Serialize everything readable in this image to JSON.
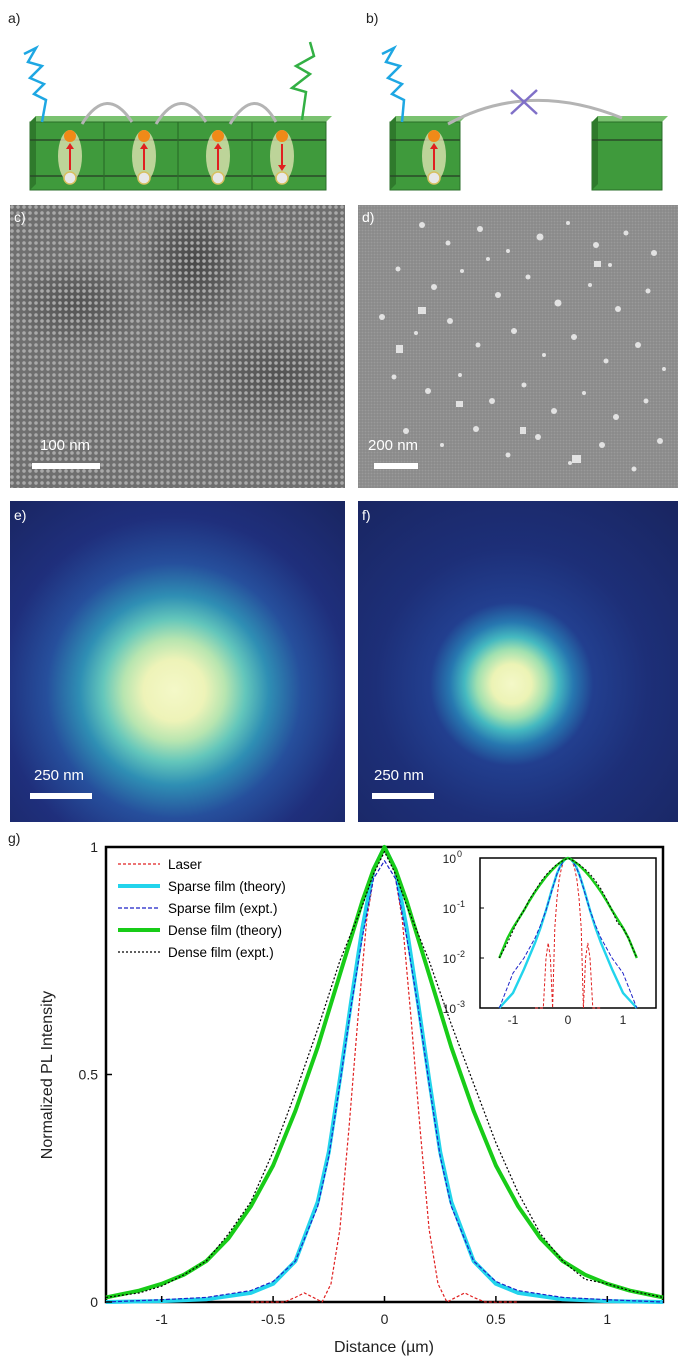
{
  "panels": {
    "a": "a)",
    "b": "b)",
    "c": "c)",
    "d": "d)",
    "e": "e)",
    "f": "f)",
    "g": "g)"
  },
  "scale_bars": {
    "c": "100 nm",
    "d": "200 nm",
    "e": "250 nm",
    "f": "250 nm"
  },
  "colors": {
    "laser": "#e02020",
    "sparse_theory": "#22d4ec",
    "sparse_expt": "#1c22c8",
    "dense_theory": "#18cc18",
    "dense_expt": "#000000",
    "cube_green": "#3f9a3c"
  },
  "chart_data": {
    "type": "line",
    "xlabel": "Distance (µm)",
    "ylabel": "Normalized PL Intensity",
    "xlim": [
      -1.25,
      1.25
    ],
    "ylim": [
      0,
      1
    ],
    "xticks": [
      -1,
      -0.5,
      0,
      0.5,
      1
    ],
    "xtick_labels": [
      "-1",
      "-0.5",
      "0",
      "0.5",
      "1"
    ],
    "yticks": [
      0,
      0.5,
      1
    ],
    "ytick_labels": [
      "0",
      "0.5",
      "1"
    ],
    "legend_position": "top-left",
    "series": [
      {
        "name": "Laser",
        "style": "dashed",
        "x": [
          -0.6,
          -0.45,
          -0.4,
          -0.36,
          -0.32,
          -0.28,
          -0.24,
          -0.2,
          -0.16,
          -0.12,
          -0.08,
          -0.04,
          0,
          0.04,
          0.08,
          0.12,
          0.16,
          0.2,
          0.24,
          0.28,
          0.32,
          0.36,
          0.4,
          0.45,
          0.6
        ],
        "y": [
          0,
          0,
          0.01,
          0.02,
          0.01,
          0.0,
          0.04,
          0.16,
          0.38,
          0.62,
          0.84,
          0.96,
          1.0,
          0.96,
          0.84,
          0.62,
          0.38,
          0.16,
          0.04,
          0.0,
          0.01,
          0.02,
          0.01,
          0,
          0
        ]
      },
      {
        "name": "Sparse film (theory)",
        "style": "solid",
        "x": [
          -1.25,
          -1.0,
          -0.8,
          -0.6,
          -0.5,
          -0.4,
          -0.3,
          -0.25,
          -0.2,
          -0.15,
          -0.1,
          -0.05,
          0,
          0.05,
          0.1,
          0.15,
          0.2,
          0.25,
          0.3,
          0.4,
          0.5,
          0.6,
          0.8,
          1.0,
          1.25
        ],
        "y": [
          0.0,
          0.002,
          0.006,
          0.02,
          0.04,
          0.09,
          0.22,
          0.33,
          0.49,
          0.66,
          0.82,
          0.95,
          1.0,
          0.95,
          0.82,
          0.66,
          0.49,
          0.33,
          0.22,
          0.09,
          0.04,
          0.02,
          0.006,
          0.002,
          0.0
        ]
      },
      {
        "name": "Sparse film (expt.)",
        "style": "dashed",
        "x": [
          -1.25,
          -1.0,
          -0.8,
          -0.6,
          -0.5,
          -0.4,
          -0.3,
          -0.25,
          -0.2,
          -0.15,
          -0.1,
          -0.05,
          0,
          0.05,
          0.1,
          0.15,
          0.2,
          0.25,
          0.3,
          0.4,
          0.5,
          0.6,
          0.8,
          1.0,
          1.25
        ],
        "y": [
          0.0,
          0.005,
          0.01,
          0.025,
          0.045,
          0.09,
          0.21,
          0.32,
          0.48,
          0.65,
          0.8,
          0.93,
          0.97,
          0.93,
          0.8,
          0.65,
          0.48,
          0.32,
          0.21,
          0.09,
          0.045,
          0.025,
          0.01,
          0.005,
          0.0
        ]
      },
      {
        "name": "Dense film (theory)",
        "style": "solid",
        "x": [
          -1.25,
          -1.1,
          -1.0,
          -0.9,
          -0.8,
          -0.7,
          -0.6,
          -0.5,
          -0.4,
          -0.3,
          -0.2,
          -0.1,
          -0.05,
          0,
          0.05,
          0.1,
          0.2,
          0.3,
          0.4,
          0.5,
          0.6,
          0.7,
          0.8,
          0.9,
          1.0,
          1.1,
          1.25
        ],
        "y": [
          0.01,
          0.025,
          0.04,
          0.06,
          0.09,
          0.14,
          0.21,
          0.3,
          0.42,
          0.56,
          0.72,
          0.88,
          0.95,
          1.0,
          0.95,
          0.88,
          0.72,
          0.56,
          0.42,
          0.3,
          0.21,
          0.14,
          0.09,
          0.06,
          0.04,
          0.025,
          0.01
        ]
      },
      {
        "name": "Dense film (expt.)",
        "style": "dotted",
        "x": [
          -1.25,
          -1.1,
          -1.0,
          -0.9,
          -0.8,
          -0.7,
          -0.6,
          -0.5,
          -0.4,
          -0.3,
          -0.2,
          -0.1,
          -0.05,
          0,
          0.05,
          0.1,
          0.2,
          0.3,
          0.4,
          0.5,
          0.6,
          0.7,
          0.8,
          0.9,
          1.0,
          1.1,
          1.25
        ],
        "y": [
          0.01,
          0.02,
          0.035,
          0.06,
          0.09,
          0.15,
          0.22,
          0.33,
          0.46,
          0.6,
          0.75,
          0.87,
          0.94,
          0.99,
          0.94,
          0.87,
          0.75,
          0.61,
          0.48,
          0.35,
          0.24,
          0.15,
          0.09,
          0.05,
          0.04,
          0.025,
          0.01
        ]
      }
    ],
    "inset": {
      "type": "line",
      "yscale": "log",
      "xlim": [
        -1.6,
        1.6
      ],
      "ylim": [
        0.001,
        1
      ],
      "xticks": [
        -1,
        0,
        1
      ],
      "xtick_labels": [
        "-1",
        "0",
        "1"
      ],
      "ytick_labels": [
        {
          "base": "10",
          "exp": "0"
        },
        {
          "base": "10",
          "exp": "-1"
        },
        {
          "base": "10",
          "exp": "-2"
        },
        {
          "base": "10",
          "exp": "-3"
        }
      ]
    }
  }
}
